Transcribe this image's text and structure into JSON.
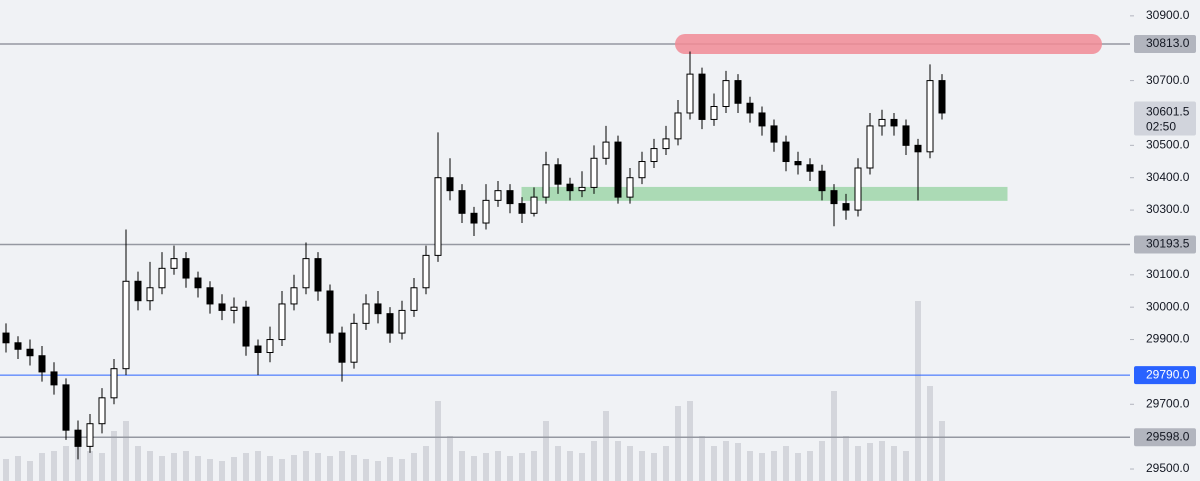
{
  "chart_data": {
    "type": "candlestick",
    "open": [
      29920,
      29890,
      29870,
      29850,
      29800,
      29760,
      29620,
      29570,
      29640,
      29720,
      29810,
      30080,
      30020,
      30060,
      30120,
      30150,
      30090,
      30060,
      30010,
      29990,
      30000,
      29880,
      29860,
      29900,
      30010,
      30060,
      30150,
      30050,
      29920,
      29830,
      29950,
      30010,
      29980,
      29920,
      29990,
      30060,
      30160,
      30400,
      30360,
      30290,
      30260,
      30330,
      30360,
      30320,
      30290,
      30340,
      30440,
      30380,
      30360,
      30370,
      30460,
      30510,
      30340,
      30400,
      30450,
      30490,
      30520,
      30600,
      30720,
      30580,
      30620,
      30700,
      30630,
      30600,
      30560,
      30510,
      30450,
      30440,
      30420,
      30360,
      30320,
      30300,
      30430,
      30560,
      30580,
      30560,
      30500,
      30480,
      30700
    ],
    "high": [
      29950,
      29910,
      29900,
      29880,
      29830,
      29780,
      29650,
      29670,
      29750,
      29840,
      30240,
      30110,
      30140,
      30170,
      30190,
      30170,
      30110,
      30080,
      30040,
      30030,
      30020,
      29900,
      29940,
      30050,
      30100,
      30200,
      30170,
      30070,
      29940,
      29980,
      30040,
      30050,
      30000,
      30020,
      30090,
      30190,
      30540,
      30460,
      30380,
      30310,
      30380,
      30390,
      30380,
      30340,
      30370,
      30480,
      30460,
      30400,
      30420,
      30500,
      30560,
      30530,
      30430,
      30480,
      30520,
      30560,
      30640,
      30790,
      30740,
      30660,
      30730,
      30720,
      30650,
      30620,
      30580,
      30530,
      30480,
      30460,
      30440,
      30380,
      30350,
      30460,
      30600,
      30610,
      30600,
      30580,
      30520,
      30750,
      30720
    ],
    "low": [
      29860,
      29840,
      29820,
      29770,
      29730,
      29590,
      29530,
      29550,
      29610,
      29700,
      29790,
      29990,
      29990,
      30040,
      30100,
      30060,
      30030,
      29980,
      29960,
      29950,
      29850,
      29790,
      29830,
      29880,
      29990,
      30040,
      30020,
      29890,
      29770,
      29810,
      29930,
      29950,
      29890,
      29900,
      29970,
      30040,
      30140,
      30330,
      30260,
      30220,
      30240,
      30310,
      30290,
      30260,
      30280,
      30320,
      30350,
      30330,
      30340,
      30350,
      30440,
      30320,
      30320,
      30380,
      30430,
      30470,
      30500,
      30580,
      30550,
      30560,
      30600,
      30600,
      30570,
      30530,
      30480,
      30420,
      30410,
      30390,
      30330,
      30250,
      30270,
      30280,
      30410,
      30530,
      30530,
      30470,
      30330,
      30460,
      30580
    ],
    "close": [
      29890,
      29870,
      29850,
      29800,
      29760,
      29620,
      29570,
      29640,
      29720,
      29810,
      30080,
      30020,
      30060,
      30120,
      30150,
      30090,
      30060,
      30010,
      29990,
      30000,
      29880,
      29860,
      29900,
      30010,
      30060,
      30150,
      30050,
      29920,
      29830,
      29950,
      30010,
      29980,
      29920,
      29990,
      30060,
      30160,
      30400,
      30360,
      30290,
      30260,
      30330,
      30360,
      30320,
      30290,
      30340,
      30440,
      30380,
      30360,
      30370,
      30460,
      30510,
      30340,
      30400,
      30450,
      30490,
      30520,
      30600,
      30720,
      30580,
      30620,
      30700,
      30630,
      30600,
      30560,
      30510,
      30450,
      30440,
      30420,
      30360,
      30320,
      30300,
      30430,
      30560,
      30580,
      30560,
      30500,
      30480,
      30700,
      30600
    ],
    "volume": [
      22,
      25,
      20,
      28,
      30,
      35,
      40,
      30,
      28,
      50,
      60,
      35,
      30,
      25,
      28,
      30,
      25,
      22,
      20,
      24,
      28,
      30,
      25,
      22,
      26,
      30,
      28,
      25,
      30,
      26,
      22,
      20,
      24,
      22,
      28,
      35,
      80,
      45,
      30,
      25,
      28,
      30,
      25,
      28,
      30,
      60,
      35,
      30,
      28,
      40,
      70,
      40,
      35,
      30,
      28,
      35,
      75,
      80,
      45,
      35,
      40,
      38,
      30,
      28,
      30,
      35,
      28,
      30,
      40,
      90,
      45,
      35,
      38,
      40,
      35,
      30,
      180,
      95,
      60
    ],
    "up_color": "#ffffff",
    "down_color": "#000000",
    "wick_color": "#000000",
    "volume_color": "#c7cad1",
    "ylim": [
      29463,
      30949
    ],
    "yticks": [
      {
        "value": 30900,
        "label": "30900.0"
      },
      {
        "value": 30700,
        "label": "30700.0"
      },
      {
        "value": 30500,
        "label": "30500.0"
      },
      {
        "value": 30400,
        "label": "30400.0"
      },
      {
        "value": 30300,
        "label": "30300.0"
      },
      {
        "value": 30100,
        "label": "30100.0"
      },
      {
        "value": 30000,
        "label": "30000.0"
      },
      {
        "value": 29900,
        "label": "29900.0"
      },
      {
        "value": 29700,
        "label": "29700.0"
      },
      {
        "value": 29500,
        "label": "29500.0"
      }
    ],
    "levels": [
      {
        "value": 30813,
        "label": "30813.0",
        "color": "#9598a1"
      },
      {
        "value": 30193.5,
        "label": "30193.5",
        "color": "#9598a1"
      },
      {
        "value": 29790,
        "label": "29790.0",
        "color": "#2962ff"
      },
      {
        "value": 29598,
        "label": "29598.0",
        "color": "#9598a1"
      }
    ],
    "last_price": {
      "value": 30601.5,
      "label": "30601.5",
      "countdown": "02:50"
    },
    "resistance_highlight": {
      "value": 30813,
      "color": "#f28b96"
    },
    "support_zone": {
      "from": 30330,
      "to": 30370,
      "color": "#8fd19a"
    }
  }
}
